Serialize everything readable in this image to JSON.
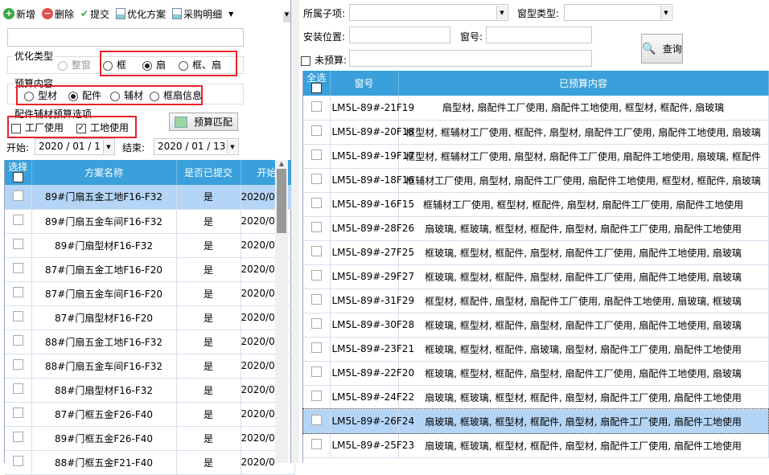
{
  "toolbar": {
    "items": [
      {
        "label": "新增",
        "icon": "plus-circle-icon",
        "color": "#3aa844"
      },
      {
        "label": "删除",
        "icon": "minus-circle-icon",
        "color": "#e05050"
      },
      {
        "label": "提交",
        "icon": "check-icon",
        "color": "#3aa844"
      },
      {
        "label": "优化方案",
        "icon": "report-icon"
      },
      {
        "label": "采购明细",
        "icon": "report-icon"
      }
    ]
  },
  "opt_type": {
    "label": "优化类型",
    "options": [
      {
        "label": "整窗",
        "checked": false,
        "disabled": true
      },
      {
        "label": "框",
        "checked": false
      },
      {
        "label": "扇",
        "checked": true
      },
      {
        "label": "框、扇",
        "checked": false
      }
    ]
  },
  "budget_content": {
    "label": "预算内容",
    "options": [
      {
        "label": "型材",
        "checked": false
      },
      {
        "label": "配件",
        "checked": true
      },
      {
        "label": "辅材",
        "checked": false
      },
      {
        "label": "框扇信息",
        "checked": false
      }
    ]
  },
  "budget_opts": {
    "label": "配件辅材预算选项",
    "factory": {
      "label": "工厂使用",
      "checked": false
    },
    "site": {
      "label": "工地使用",
      "checked": true
    },
    "match_button": "预算匹配"
  },
  "dates": {
    "start_label": "开始:",
    "start_value": "2020 / 01 / 1",
    "end_label": "结束:",
    "end_value": "2020 / 01 / 13"
  },
  "left_grid": {
    "headers": [
      "选择",
      "方案名称",
      "是否已提交",
      "开始"
    ],
    "rows": [
      [
        "89#门扇五金工地F16-F32",
        "是",
        "2020/0"
      ],
      [
        "89#门扇五金车间F16-F32",
        "是",
        "2020/0"
      ],
      [
        "89#门扇型材F16-F32",
        "是",
        "2020/0"
      ],
      [
        "87#门扇五金工地F16-F20",
        "是",
        "2020/0"
      ],
      [
        "87#门扇五金车间F16-F20",
        "是",
        "2020/0"
      ],
      [
        "87#门扇型材F16-F20",
        "是",
        "2020/0"
      ],
      [
        "88#门扇五金工地F16-F32",
        "是",
        "2020/0"
      ],
      [
        "88#门扇五金车间F16-F32",
        "是",
        "2020/0"
      ],
      [
        "88#门扇型材F16-F32",
        "是",
        "2020/0"
      ],
      [
        "87#门框五金F26-F40",
        "是",
        "2020/0"
      ],
      [
        "89#门框五金F26-F40",
        "是",
        "2020/0"
      ],
      [
        "88#门框五金F21-F40",
        "是",
        "2020/0"
      ]
    ]
  },
  "filters": {
    "subitem_label": "所属子项:",
    "wintype_label": "窗型类型:",
    "location_label": "安装位置:",
    "winno_label": "窗号:",
    "unbudget_label": "未预算:",
    "query_button": "查询"
  },
  "right_grid": {
    "headers": [
      "全选",
      "窗号",
      "已预算内容"
    ],
    "selected_index": 13,
    "rows": [
      [
        "LM5L-89#-21F19",
        "扇型材, 扇配件工厂使用, 扇配件工地使用, 框型材, 框配件, 扇玻璃"
      ],
      [
        "LM5L-89#-20F18",
        "框型材, 框辅材工厂使用, 框配件, 扇型材, 扇配件工厂使用, 扇配件工地使用, 扇玻璃"
      ],
      [
        "LM5L-89#-19F17",
        "框型材, 框辅材工厂使用, 扇型材, 扇配件工厂使用, 扇配件工地使用, 扇玻璃, 框配件"
      ],
      [
        "LM5L-89#-18F16",
        "框辅材工厂使用, 扇型材, 扇配件工厂使用, 扇配件工地使用, 框型材, 框配件, 扇玻璃"
      ],
      [
        "LM5L-89#-16F15",
        "框辅材工厂使用, 框型材, 框配件, 扇型材, 扇配件工厂使用, 扇配件工地使用"
      ],
      [
        "LM5L-89#-28F26",
        "扇玻璃, 框玻璃, 框型材, 框配件, 扇型材, 扇配件工厂使用, 扇配件工地使用"
      ],
      [
        "LM5L-89#-27F25",
        "框玻璃, 框型材, 框配件, 扇型材, 扇配件工厂使用, 扇配件工地使用, 扇玻璃"
      ],
      [
        "LM5L-89#-29F27",
        "框玻璃, 框型材, 框配件, 扇型材, 扇配件工厂使用, 扇配件工地使用, 扇玻璃"
      ],
      [
        "LM5L-89#-31F29",
        "框型材, 框配件, 扇型材, 扇配件工厂使用, 扇配件工地使用, 扇玻璃, 框玻璃"
      ],
      [
        "LM5L-89#-30F28",
        "框玻璃, 框型材, 框配件, 扇型材, 扇配件工厂使用, 扇配件工地使用, 扇玻璃"
      ],
      [
        "LM5L-89#-23F21",
        "框玻璃, 框型材, 框配件, 扇玻璃, 扇型材, 扇配件工厂使用, 扇配件工地使用"
      ],
      [
        "LM5L-89#-22F20",
        "框玻璃, 框型材, 框配件, 扇型材, 扇配件工厂使用, 扇配件工地使用, 扇玻璃"
      ],
      [
        "LM5L-89#-24F22",
        "扇玻璃, 框玻璃, 框型材, 框配件, 扇型材, 扇配件工厂使用, 扇配件工地使用"
      ],
      [
        "LM5L-89#-26F24",
        "扇玻璃, 框玻璃, 框型材, 框配件, 扇型材, 扇配件工厂使用, 扇配件工地使用"
      ],
      [
        "LM5L-89#-25F23",
        "扇玻璃, 框玻璃, 框型材, 框配件, 扇型材, 扇配件工厂使用, 扇配件工地使用"
      ]
    ]
  },
  "colors": {
    "header": "#3aa0db",
    "selected_row": "#b4d5f5",
    "highlight_box": "#e8212b"
  }
}
